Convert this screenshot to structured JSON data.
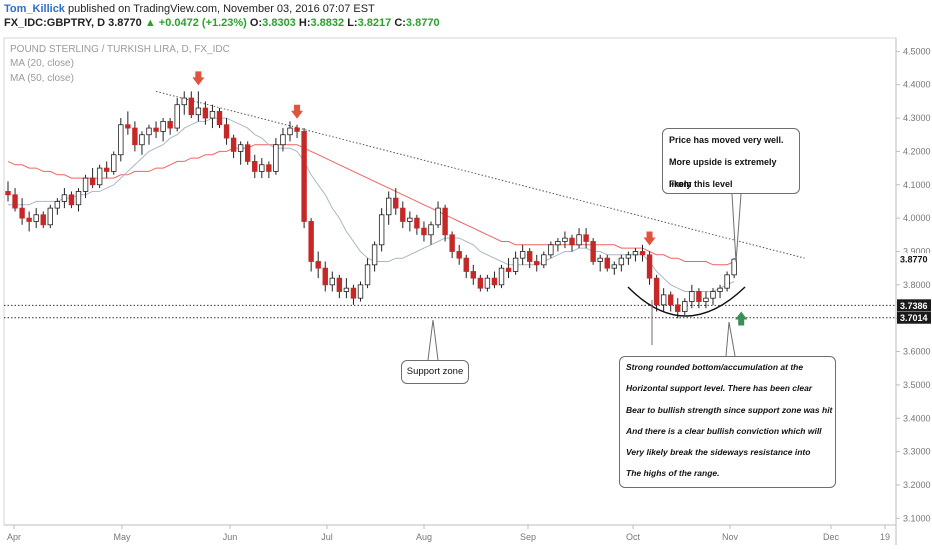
{
  "header": {
    "author": "Tom_Killick",
    "published": "published on TradingView.com, November 03, 2016 07:07 EST",
    "symbol": "FX_IDC:GBPTRY, D",
    "last": "3.8770",
    "change_arrow": "▲",
    "change": "+0.0472 (+1.23%)",
    "o_label": "O:",
    "o_value": "3.8303",
    "h_label": "H:",
    "h_value": "3.8832",
    "l_label": "L:",
    "l_value": "3.8217",
    "c_label": "C:",
    "c_value": "3.8770"
  },
  "overlay": {
    "name": "POUND STERLING / TURKISH LIRA, D, FX_IDC",
    "ma20": "MA (20, close)",
    "ma50": "MA (50, close)"
  },
  "colors": {
    "up_candle": "#ffffff",
    "down_candle": "#c62828",
    "ma20": "#a9b7c6",
    "ma50": "#ef6461",
    "red_arrow": "#e0533d",
    "green_arrow": "#3a8f55",
    "trendline": "#555555"
  },
  "chart_data": {
    "type": "candlestick",
    "x_ticks": [
      "Apr",
      "May",
      "Jun",
      "Jul",
      "Aug",
      "Sep",
      "Oct",
      "Nov",
      "Dec",
      "19"
    ],
    "y_ticks": [
      "4.5000",
      "4.4000",
      "4.3000",
      "4.2000",
      "4.1000",
      "4.0000",
      "3.9000",
      "3.8000",
      "3.7000",
      "3.6000",
      "3.5000",
      "3.4000",
      "3.3000",
      "3.2000",
      "3.1000"
    ],
    "ylim": [
      3.08,
      4.54
    ],
    "last_price_label": "3.8770",
    "price_labels": [
      "3.7386",
      "3.7014"
    ],
    "support_levels": [
      3.7386,
      3.7014
    ],
    "trendline": {
      "from": [
        21,
        4.38
      ],
      "to": [
        113,
        3.88
      ]
    },
    "sell_arrows_at_index": [
      27,
      41,
      91
    ],
    "buy_arrow_at_index": 104,
    "annotations": {
      "price_moved": [
        "Price has moved very well.",
        "More upside is extremely likely",
        "From this level"
      ],
      "support_zone": "Support zone",
      "rounded_bottom": [
        "Strong rounded bottom/accumulation at the",
        "Horizontal support level. There has been clear",
        "Bear to bullish strength since support zone was hit",
        "And there is a clear bullish conviction which will",
        "Very likely break the sideways resistance into",
        "The highs of the range."
      ]
    },
    "ohlc": [
      [
        4.08,
        4.11,
        4.05,
        4.07
      ],
      [
        4.07,
        4.09,
        4.02,
        4.03
      ],
      [
        4.03,
        4.06,
        3.98,
        4.0
      ],
      [
        4.0,
        4.02,
        3.96,
        3.99
      ],
      [
        3.99,
        4.03,
        3.97,
        4.01
      ],
      [
        4.01,
        4.02,
        3.97,
        3.98
      ],
      [
        3.98,
        4.04,
        3.97,
        4.03
      ],
      [
        4.03,
        4.06,
        4.01,
        4.05
      ],
      [
        4.05,
        4.09,
        4.03,
        4.07
      ],
      [
        4.07,
        4.08,
        4.03,
        4.04
      ],
      [
        4.04,
        4.09,
        4.02,
        4.08
      ],
      [
        4.08,
        4.13,
        4.06,
        4.12
      ],
      [
        4.12,
        4.15,
        4.09,
        4.1
      ],
      [
        4.1,
        4.16,
        4.09,
        4.15
      ],
      [
        4.15,
        4.17,
        4.12,
        4.14
      ],
      [
        4.14,
        4.2,
        4.13,
        4.19
      ],
      [
        4.19,
        4.3,
        4.17,
        4.28
      ],
      [
        4.28,
        4.32,
        4.25,
        4.27
      ],
      [
        4.27,
        4.29,
        4.2,
        4.22
      ],
      [
        4.22,
        4.26,
        4.19,
        4.25
      ],
      [
        4.25,
        4.28,
        4.22,
        4.27
      ],
      [
        4.27,
        4.29,
        4.24,
        4.26
      ],
      [
        4.26,
        4.3,
        4.23,
        4.29
      ],
      [
        4.29,
        4.3,
        4.25,
        4.27
      ],
      [
        4.27,
        4.36,
        4.26,
        4.34
      ],
      [
        4.34,
        4.38,
        4.31,
        4.36
      ],
      [
        4.36,
        4.38,
        4.3,
        4.31
      ],
      [
        4.31,
        4.38,
        4.29,
        4.33
      ],
      [
        4.33,
        4.35,
        4.28,
        4.3
      ],
      [
        4.3,
        4.34,
        4.27,
        4.32
      ],
      [
        4.32,
        4.33,
        4.27,
        4.28
      ],
      [
        4.28,
        4.3,
        4.22,
        4.24
      ],
      [
        4.24,
        4.25,
        4.18,
        4.2
      ],
      [
        4.2,
        4.23,
        4.16,
        4.22
      ],
      [
        4.22,
        4.23,
        4.16,
        4.17
      ],
      [
        4.17,
        4.19,
        4.12,
        4.14
      ],
      [
        4.14,
        4.18,
        4.12,
        4.16
      ],
      [
        4.16,
        4.17,
        4.12,
        4.14
      ],
      [
        4.14,
        4.24,
        4.13,
        4.22
      ],
      [
        4.22,
        4.27,
        4.2,
        4.25
      ],
      [
        4.25,
        4.29,
        4.23,
        4.27
      ],
      [
        4.27,
        4.28,
        4.24,
        4.26
      ],
      [
        4.26,
        4.27,
        3.97,
        3.99
      ],
      [
        3.99,
        4.0,
        3.84,
        3.87
      ],
      [
        3.87,
        3.9,
        3.82,
        3.85
      ],
      [
        3.85,
        3.87,
        3.78,
        3.8
      ],
      [
        3.8,
        3.84,
        3.78,
        3.82
      ],
      [
        3.82,
        3.83,
        3.76,
        3.78
      ],
      [
        3.78,
        3.82,
        3.76,
        3.79
      ],
      [
        3.79,
        3.8,
        3.74,
        3.76
      ],
      [
        3.76,
        3.81,
        3.75,
        3.8
      ],
      [
        3.8,
        3.88,
        3.79,
        3.86
      ],
      [
        3.86,
        3.93,
        3.84,
        3.92
      ],
      [
        3.92,
        4.03,
        3.9,
        4.01
      ],
      [
        4.01,
        4.08,
        3.98,
        4.06
      ],
      [
        4.06,
        4.09,
        4.01,
        4.03
      ],
      [
        4.03,
        4.05,
        3.97,
        3.99
      ],
      [
        3.99,
        4.02,
        3.96,
        4.0
      ],
      [
        4.0,
        4.01,
        3.95,
        3.97
      ],
      [
        3.97,
        3.99,
        3.93,
        3.95
      ],
      [
        3.95,
        3.99,
        3.92,
        3.98
      ],
      [
        3.98,
        4.05,
        3.97,
        4.03
      ],
      [
        4.03,
        4.04,
        3.93,
        3.95
      ],
      [
        3.95,
        3.96,
        3.88,
        3.9
      ],
      [
        3.9,
        3.92,
        3.86,
        3.88
      ],
      [
        3.88,
        3.89,
        3.82,
        3.84
      ],
      [
        3.84,
        3.86,
        3.8,
        3.82
      ],
      [
        3.82,
        3.83,
        3.78,
        3.79
      ],
      [
        3.79,
        3.83,
        3.78,
        3.82
      ],
      [
        3.82,
        3.84,
        3.79,
        3.8
      ],
      [
        3.8,
        3.86,
        3.79,
        3.85
      ],
      [
        3.85,
        3.88,
        3.82,
        3.84
      ],
      [
        3.84,
        3.9,
        3.83,
        3.88
      ],
      [
        3.88,
        3.92,
        3.86,
        3.9
      ],
      [
        3.9,
        3.91,
        3.85,
        3.87
      ],
      [
        3.87,
        3.89,
        3.84,
        3.86
      ],
      [
        3.86,
        3.9,
        3.85,
        3.89
      ],
      [
        3.89,
        3.93,
        3.88,
        3.92
      ],
      [
        3.92,
        3.94,
        3.9,
        3.93
      ],
      [
        3.93,
        3.96,
        3.91,
        3.94
      ],
      [
        3.94,
        3.95,
        3.9,
        3.92
      ],
      [
        3.92,
        3.97,
        3.91,
        3.95
      ],
      [
        3.95,
        3.97,
        3.91,
        3.93
      ],
      [
        3.93,
        3.94,
        3.86,
        3.87
      ],
      [
        3.87,
        3.89,
        3.84,
        3.88
      ],
      [
        3.88,
        3.89,
        3.84,
        3.85
      ],
      [
        3.85,
        3.87,
        3.83,
        3.86
      ],
      [
        3.86,
        3.89,
        3.84,
        3.88
      ],
      [
        3.88,
        3.9,
        3.86,
        3.89
      ],
      [
        3.89,
        3.91,
        3.87,
        3.9
      ],
      [
        3.9,
        3.92,
        3.87,
        3.89
      ],
      [
        3.89,
        3.9,
        3.8,
        3.82
      ],
      [
        3.82,
        3.83,
        3.72,
        3.74
      ],
      [
        3.74,
        3.79,
        3.72,
        3.77
      ],
      [
        3.77,
        3.78,
        3.72,
        3.74
      ],
      [
        3.74,
        3.76,
        3.7,
        3.72
      ],
      [
        3.72,
        3.76,
        3.71,
        3.75
      ],
      [
        3.75,
        3.8,
        3.73,
        3.78
      ],
      [
        3.78,
        3.79,
        3.73,
        3.75
      ],
      [
        3.75,
        3.78,
        3.73,
        3.76
      ],
      [
        3.76,
        3.79,
        3.74,
        3.78
      ],
      [
        3.78,
        3.8,
        3.76,
        3.79
      ],
      [
        3.79,
        3.84,
        3.78,
        3.83
      ],
      [
        3.83,
        3.88,
        3.82,
        3.877
      ]
    ],
    "ma20": [
      4.04,
      4.04,
      4.04,
      4.04,
      4.05,
      4.05,
      4.05,
      4.05,
      4.06,
      4.06,
      4.07,
      4.07,
      4.08,
      4.08,
      4.09,
      4.1,
      4.12,
      4.14,
      4.16,
      4.18,
      4.2,
      4.21,
      4.22,
      4.24,
      4.25,
      4.27,
      4.28,
      4.29,
      4.29,
      4.3,
      4.3,
      4.3,
      4.29,
      4.28,
      4.27,
      4.25,
      4.24,
      4.22,
      4.21,
      4.21,
      4.21,
      4.2,
      4.17,
      4.13,
      4.1,
      4.07,
      4.03,
      4.0,
      3.96,
      3.93,
      3.9,
      3.88,
      3.87,
      3.87,
      3.87,
      3.88,
      3.88,
      3.89,
      3.9,
      3.91,
      3.92,
      3.93,
      3.94,
      3.94,
      3.94,
      3.93,
      3.92,
      3.9,
      3.89,
      3.88,
      3.87,
      3.86,
      3.86,
      3.86,
      3.86,
      3.86,
      3.87,
      3.88,
      3.89,
      3.9,
      3.9,
      3.91,
      3.91,
      3.9,
      3.9,
      3.89,
      3.89,
      3.89,
      3.89,
      3.89,
      3.89,
      3.87,
      3.84,
      3.82,
      3.8,
      3.79,
      3.78,
      3.78,
      3.78,
      3.78,
      3.78,
      3.79,
      3.8,
      3.81
    ],
    "ma50": [
      4.17,
      4.16,
      4.16,
      4.15,
      4.15,
      4.14,
      4.14,
      4.13,
      4.13,
      4.12,
      4.12,
      4.12,
      4.12,
      4.12,
      4.12,
      4.12,
      4.13,
      4.13,
      4.14,
      4.14,
      4.14,
      4.15,
      4.15,
      4.16,
      4.17,
      4.17,
      4.18,
      4.18,
      4.19,
      4.19,
      4.2,
      4.2,
      4.21,
      4.21,
      4.21,
      4.22,
      4.22,
      4.22,
      4.22,
      4.22,
      4.22,
      4.22,
      4.21,
      4.2,
      4.19,
      4.18,
      4.17,
      4.16,
      4.15,
      4.14,
      4.13,
      4.12,
      4.11,
      4.1,
      4.09,
      4.08,
      4.07,
      4.06,
      4.05,
      4.04,
      4.03,
      4.02,
      4.01,
      4.0,
      3.99,
      3.98,
      3.97,
      3.96,
      3.95,
      3.94,
      3.93,
      3.93,
      3.92,
      3.92,
      3.92,
      3.92,
      3.92,
      3.92,
      3.92,
      3.92,
      3.92,
      3.92,
      3.92,
      3.92,
      3.92,
      3.92,
      3.92,
      3.91,
      3.91,
      3.91,
      3.91,
      3.9,
      3.89,
      3.89,
      3.88,
      3.88,
      3.87,
      3.87,
      3.87,
      3.87,
      3.86,
      3.86,
      3.86,
      3.87
    ]
  }
}
